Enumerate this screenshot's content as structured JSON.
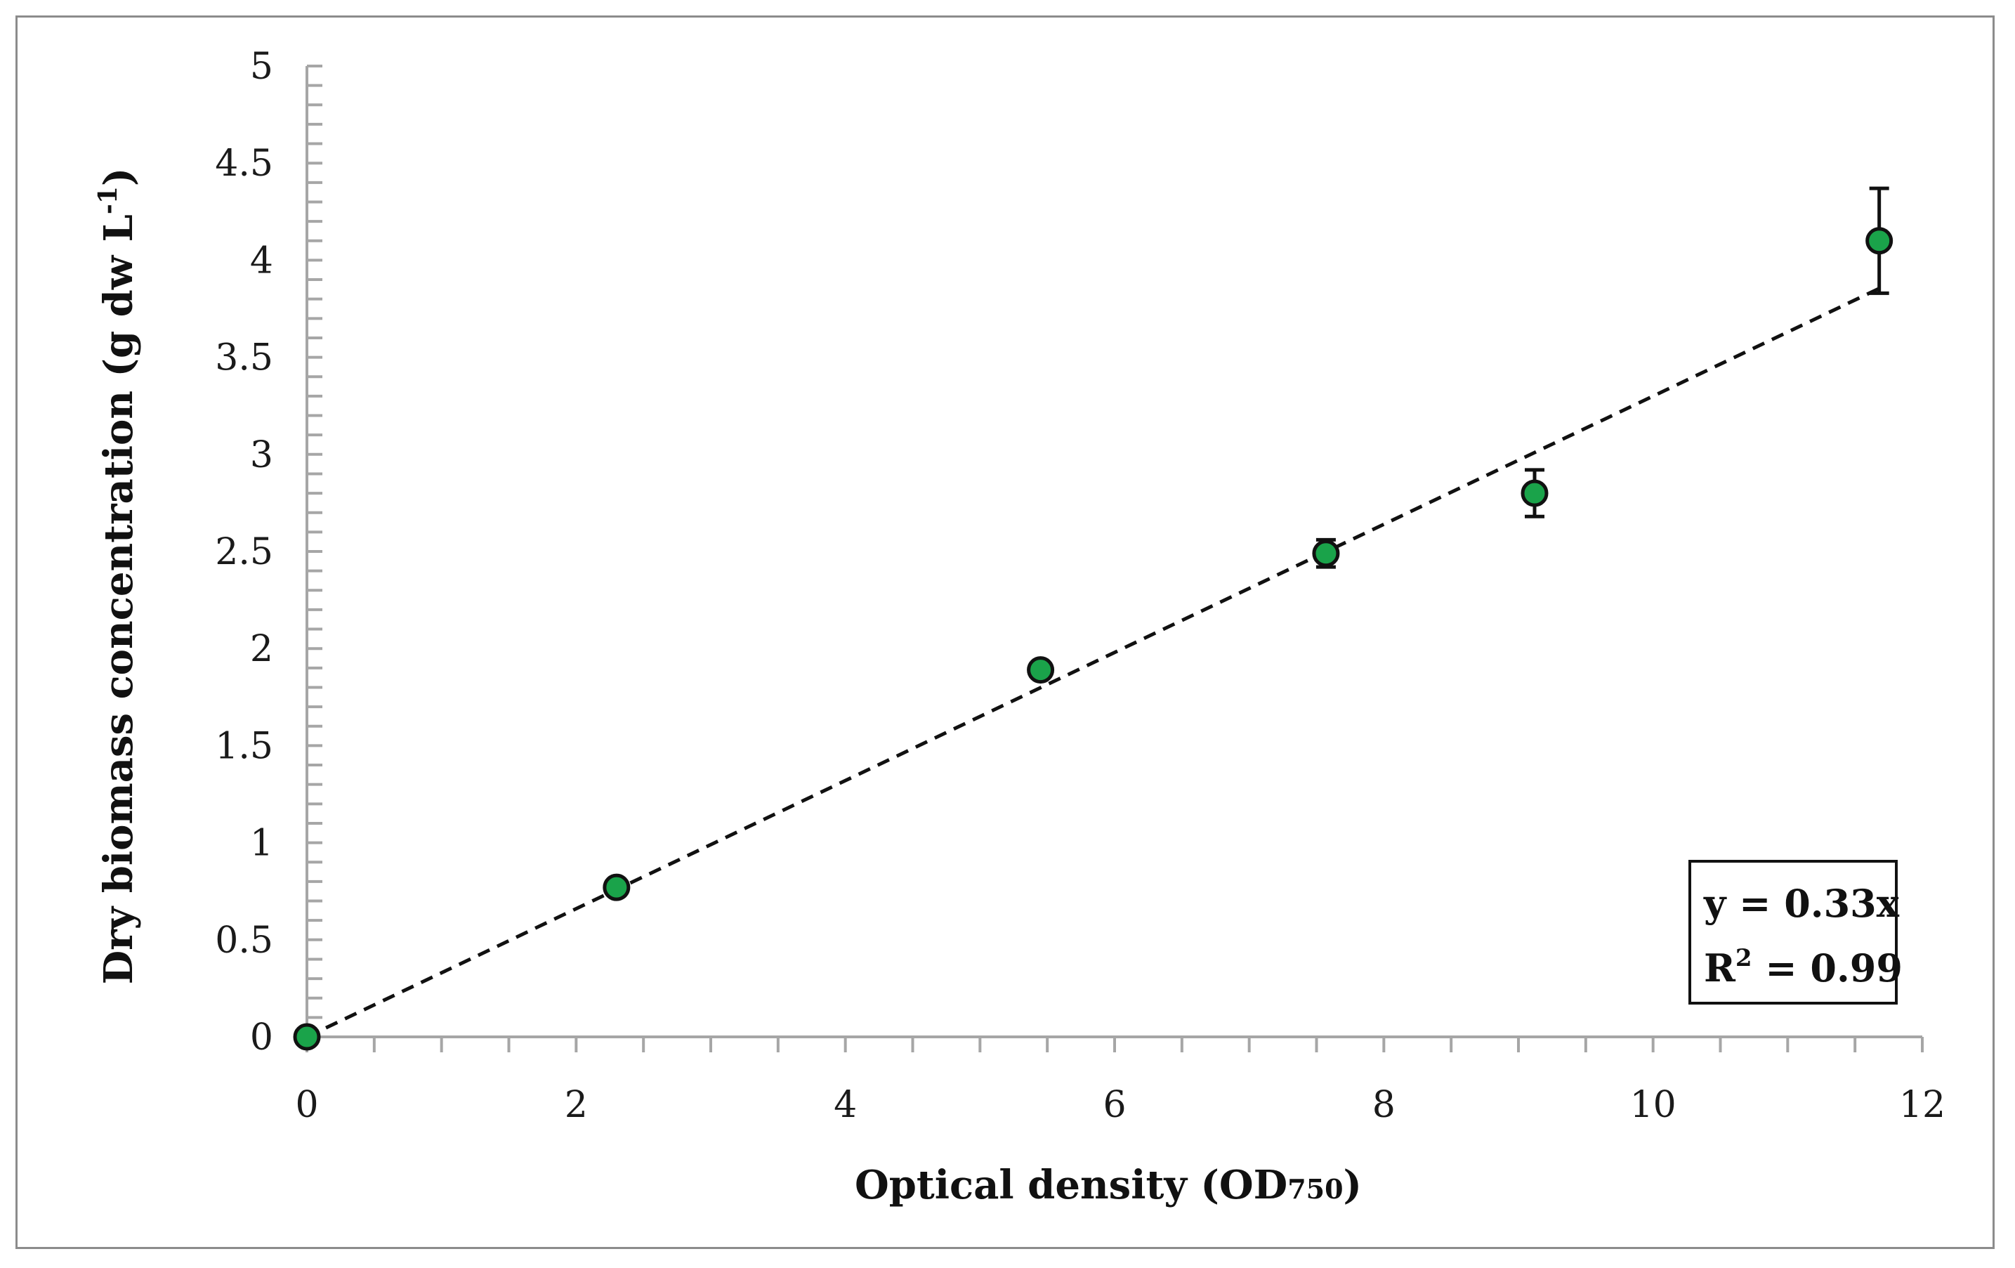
{
  "chart_data": {
    "type": "scatter",
    "xlabel": "Optical density (OD",
    "xlabel_sub": "750",
    "xlabel_end": ")",
    "ylabel": "Dry biomass concentration (g dw L",
    "ylabel_sup": "-1",
    "ylabel_end": ")",
    "xlim": [
      0,
      12
    ],
    "ylim": [
      0,
      5
    ],
    "x_ticks": [
      0,
      2,
      4,
      6,
      8,
      10,
      12
    ],
    "x_tick_labels": [
      "0",
      "2",
      "4",
      "6",
      "8",
      "10",
      "12"
    ],
    "x_minor_step": 0.5,
    "y_ticks": [
      0,
      0.5,
      1,
      1.5,
      2,
      2.5,
      3,
      3.5,
      4,
      4.5,
      5
    ],
    "y_tick_labels": [
      "0",
      "0.5",
      "1",
      "1.5",
      "2",
      "2.5",
      "3",
      "3.5",
      "4",
      "4.5",
      "5"
    ],
    "y_minor_step": 0.1,
    "grid": false,
    "series": [
      {
        "x": [
          0,
          2.3,
          5.45,
          7.57,
          9.12,
          11.68
        ],
        "y": [
          0,
          0.77,
          1.89,
          2.49,
          2.8,
          4.1
        ],
        "y_err": [
          0,
          0.02,
          0.03,
          0.07,
          0.12,
          0.27
        ],
        "marker_color": "#1aa34a",
        "edge_color": "#111111"
      }
    ],
    "trendline": {
      "slope": 0.33,
      "x_range": [
        0,
        11.68
      ],
      "style": "dashed",
      "color": "#111111"
    },
    "annotation": {
      "equation": "y = 0.33x",
      "r2_prefix": "R",
      "r2_sup": "2",
      "r2_value": " = 0.99",
      "placement": "bottom-right"
    }
  }
}
